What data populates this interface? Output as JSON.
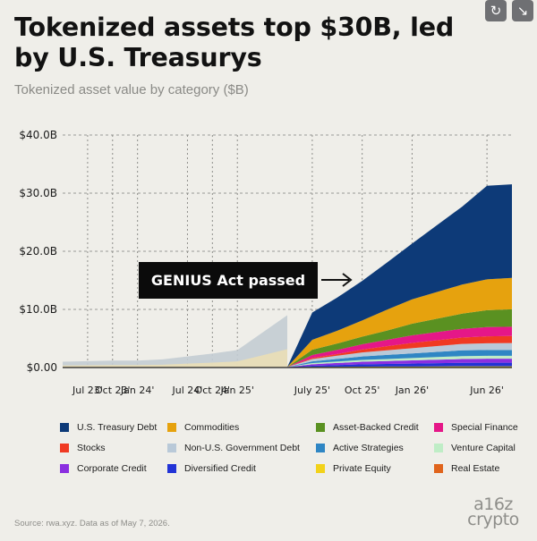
{
  "header": {
    "title": "Tokenized assets top $30B, led by U.S. Treasurys",
    "subtitle": "Tokenized asset value by category ($B)"
  },
  "toolbar": {
    "refresh_icon": "refresh-icon",
    "collapse_icon": "collapse-icon"
  },
  "annotation": {
    "text": "GENIUS Act passed",
    "arrow_icon": "arrow-right-icon"
  },
  "chart_data": {
    "type": "area",
    "stacked": true,
    "ylim": [
      0,
      40
    ],
    "yticks": [
      "$0.00",
      "$10.0B",
      "$20.0B",
      "$30.0B",
      "$40.0B"
    ],
    "xticks": [
      "Jul 23'",
      "Oct 23'",
      "Jan  24'",
      "Jul 24'",
      "Oct 24'",
      "Jan 25'",
      "July 25'",
      "Oct 25'",
      "Jan 26'",
      "Jun 26'"
    ],
    "grid": "dashed",
    "x": [
      "Jun 23'",
      "Jul 23'",
      "Oct 23'",
      "Jan  24'",
      "Apr 24'",
      "Jul 24'",
      "Oct 24'",
      "Jan 25'",
      "Apr 25'",
      "Jun 25'",
      "July 25'",
      "Sep 25'",
      "Oct 25'",
      "Dec 25'",
      "Jan 26'",
      "Mar 26'",
      "Apr 26'",
      "Jun 26'",
      "Jul 26'"
    ],
    "pre_period_total": [
      1.0,
      1.1,
      1.2,
      1.2,
      1.4,
      1.9,
      2.4,
      3.0,
      6.0,
      9.0
    ],
    "series": [
      {
        "name": "Real Estate",
        "color": "#e0641c",
        "values": [
          0.02,
          0.02,
          0.02,
          0.02,
          0.02,
          0.02,
          0.02,
          0.02,
          0.02,
          0.02,
          0.03,
          0.03,
          0.03,
          0.03,
          0.03,
          0.04,
          0.04,
          0.04,
          0.04
        ]
      },
      {
        "name": "Private Equity",
        "color": "#f2d21a",
        "values": [
          0.05,
          0.05,
          0.05,
          0.05,
          0.05,
          0.05,
          0.05,
          0.05,
          0.05,
          0.05,
          0.08,
          0.1,
          0.12,
          0.14,
          0.15,
          0.16,
          0.17,
          0.18,
          0.18
        ]
      },
      {
        "name": "Diversified Credit",
        "color": "#2233d6",
        "values": [
          0,
          0,
          0,
          0,
          0,
          0,
          0,
          0,
          0,
          0,
          0.2,
          0.3,
          0.4,
          0.45,
          0.5,
          0.55,
          0.6,
          0.6,
          0.6
        ]
      },
      {
        "name": "Corporate Credit",
        "color": "#8b2fe0",
        "values": [
          0,
          0,
          0,
          0,
          0,
          0,
          0,
          0,
          0,
          0,
          0.25,
          0.35,
          0.45,
          0.5,
          0.55,
          0.6,
          0.65,
          0.7,
          0.7
        ]
      },
      {
        "name": "Venture Capital",
        "color": "#bfedc6",
        "values": [
          0,
          0,
          0,
          0,
          0,
          0,
          0,
          0,
          0,
          0,
          0.2,
          0.25,
          0.3,
          0.35,
          0.4,
          0.45,
          0.5,
          0.5,
          0.5
        ]
      },
      {
        "name": "Active Strategies",
        "color": "#2f86c4",
        "values": [
          0,
          0,
          0,
          0,
          0,
          0,
          0,
          0,
          0,
          0,
          0.3,
          0.45,
          0.6,
          0.7,
          0.8,
          0.9,
          1.0,
          1.0,
          1.0
        ]
      },
      {
        "name": "Non-U.S. Government Debt",
        "color": "#b9c9d8",
        "values": [
          0,
          0,
          0,
          0,
          0,
          0,
          0,
          0,
          0,
          0,
          0.4,
          0.55,
          0.7,
          0.8,
          0.9,
          1.0,
          1.1,
          1.15,
          1.2
        ]
      },
      {
        "name": "Stocks",
        "color": "#f03a22",
        "values": [
          0,
          0,
          0,
          0,
          0,
          0,
          0,
          0,
          0,
          0,
          0.2,
          0.3,
          0.5,
          0.7,
          0.9,
          1.0,
          1.1,
          1.2,
          1.2
        ]
      },
      {
        "name": "Special Finance",
        "color": "#e51788",
        "values": [
          0,
          0,
          0,
          0,
          0,
          0,
          0,
          0,
          0,
          0,
          0.5,
          0.7,
          0.9,
          1.1,
          1.3,
          1.4,
          1.5,
          1.6,
          1.6
        ]
      },
      {
        "name": "Asset-Backed Credit",
        "color": "#5a9121",
        "values": [
          0,
          0,
          0,
          0,
          0,
          0,
          0,
          0,
          0,
          0,
          0.9,
          1.1,
          1.3,
          1.6,
          2.0,
          2.3,
          2.6,
          2.9,
          3.0
        ]
      },
      {
        "name": "Commodities",
        "color": "#e6a20e",
        "values": [
          0,
          0,
          0,
          0,
          0,
          0,
          0,
          0,
          0,
          0,
          1.7,
          2.2,
          2.8,
          3.6,
          4.2,
          4.6,
          5.0,
          5.3,
          5.4
        ]
      },
      {
        "name": "U.S. Treasury Debt",
        "color": "#0d3a78",
        "values": [
          0,
          0,
          0,
          0,
          0,
          0,
          0,
          0,
          0,
          0,
          4.7,
          5.7,
          6.8,
          8.1,
          9.6,
          11.5,
          13.4,
          16.1,
          16.1
        ]
      }
    ]
  },
  "legend": [
    {
      "label": "U.S. Treasury Debt",
      "color": "#0d3a78"
    },
    {
      "label": "Commodities",
      "color": "#e6a20e"
    },
    {
      "label": "Asset-Backed Credit",
      "color": "#5a9121"
    },
    {
      "label": "Special Finance",
      "color": "#e51788"
    },
    {
      "label": "Stocks",
      "color": "#f03a22"
    },
    {
      "label": "Non-U.S. Government Debt",
      "color": "#b9c9d8"
    },
    {
      "label": "Active Strategies",
      "color": "#2f86c4"
    },
    {
      "label": "Venture Capital",
      "color": "#bfedc6"
    },
    {
      "label": "Corporate Credit",
      "color": "#8b2fe0"
    },
    {
      "label": "Diversified Credit",
      "color": "#2233d6"
    },
    {
      "label": "Private Equity",
      "color": "#f2d21a"
    },
    {
      "label": "Real Estate",
      "color": "#e0641c"
    }
  ],
  "footer": {
    "source": "Source: rwa.xyz. Data as of May 7, 2026.",
    "logo_top": "a16z",
    "logo_bottom": "crypto"
  }
}
